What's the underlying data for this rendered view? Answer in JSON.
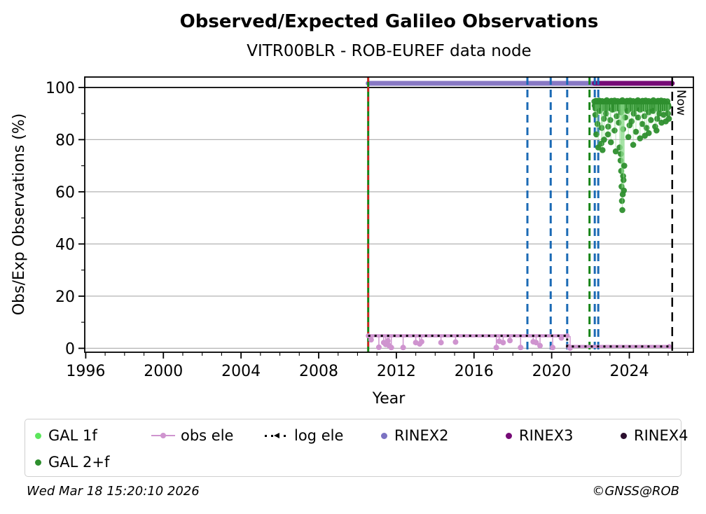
{
  "title": "Observed/Expected Galileo Observations",
  "subtitle": "VITR00BLR - ROB-EUREF data node",
  "now_label": "Now",
  "footer": {
    "timestamp": "Wed Mar 18 15:20:10 2026",
    "copyright": "©GNSS@ROB"
  },
  "legend": {
    "items": [
      {
        "label": "GAL 1f",
        "marker": "dot",
        "color": "#5ce65c",
        "row": 0
      },
      {
        "label": "obs ele",
        "marker": "line-dot",
        "color": "#cf94cf",
        "row": 0
      },
      {
        "label": "log ele",
        "marker": "dotted-arrow",
        "color": "#000000",
        "row": 0
      },
      {
        "label": "RINEX2",
        "marker": "dot",
        "color": "#7b72c2",
        "row": 0
      },
      {
        "label": "RINEX3",
        "marker": "dot",
        "color": "#760a76",
        "row": 0
      },
      {
        "label": "RINEX4",
        "marker": "dot",
        "color": "#2b0f2e",
        "row": 0
      },
      {
        "label": "GAL 2+f",
        "marker": "dot",
        "color": "#2e8f2e",
        "row": 1
      }
    ]
  },
  "chart_data": {
    "type": "scatter",
    "title": "Observed/Expected Galileo Observations",
    "subtitle": "VITR00BLR - ROB-EUREF data node",
    "xlabel": "Year",
    "ylabel": "Obs/Exp Observations (%)",
    "xlim": [
      1995.95,
      2027.3
    ],
    "ylim": [
      -1.5,
      104
    ],
    "x_major_ticks": [
      1996,
      2000,
      2004,
      2008,
      2012,
      2016,
      2020,
      2024
    ],
    "x_minor_step": 1,
    "y_major_ticks": [
      0,
      20,
      40,
      60,
      80,
      100
    ],
    "y_minor_step": 10,
    "grid_y": [
      0,
      20,
      40,
      60,
      80
    ],
    "grid_y_strong": [
      100
    ],
    "legend_position": "below",
    "grid": true,
    "bars": [
      {
        "name": "RINEX2",
        "y": 101.6,
        "x0": 2010.55,
        "x1": 2022.2,
        "color": "#8878c4"
      },
      {
        "name": "RINEX3",
        "y": 101.6,
        "x0": 2022.2,
        "x1": 2026.21,
        "color": "#760a76"
      }
    ],
    "event_lines": [
      {
        "x": 2010.55,
        "style": "solid",
        "color": "#168416",
        "overlay_color": "#d62020",
        "overlay_style": "dashed"
      },
      {
        "x": 2018.75,
        "style": "dashed",
        "color": "#1b6ab5"
      },
      {
        "x": 2019.95,
        "style": "dashed",
        "color": "#1b6ab5"
      },
      {
        "x": 2020.8,
        "style": "dashed",
        "color": "#1b6ab5"
      },
      {
        "x": 2021.95,
        "style": "dashed",
        "color": "#168416"
      },
      {
        "x": 2022.22,
        "style": "dashed",
        "color": "#1b6ab5"
      },
      {
        "x": 2022.4,
        "style": "dashed",
        "color": "#1b6ab5"
      }
    ],
    "now_line": {
      "x": 2026.21,
      "color": "#000000",
      "label": "Now"
    },
    "obs_ele": {
      "name": "obs ele",
      "color": "#cf94cf",
      "segments": [
        [
          [
            2010.55,
            4.8
          ],
          [
            2020.8,
            4.8
          ]
        ],
        [
          [
            2020.85,
            0.7
          ],
          [
            2026.05,
            0.7
          ]
        ]
      ],
      "drop_points": [
        [
          2010.7,
          3.3
        ],
        [
          2011.1,
          0.4
        ],
        [
          2011.35,
          2.2
        ],
        [
          2011.45,
          1.5
        ],
        [
          2011.56,
          2.8
        ],
        [
          2011.63,
          1.0
        ],
        [
          2011.74,
          0.3
        ],
        [
          2012.35,
          0.3
        ],
        [
          2013.0,
          2.2
        ],
        [
          2013.2,
          1.7
        ],
        [
          2013.3,
          2.5
        ],
        [
          2014.3,
          2.2
        ],
        [
          2015.05,
          2.4
        ],
        [
          2017.15,
          0.3
        ],
        [
          2017.3,
          2.7
        ],
        [
          2017.5,
          2.2
        ],
        [
          2017.85,
          3.0
        ],
        [
          2018.4,
          0.3
        ],
        [
          2019.05,
          2.5
        ],
        [
          2019.2,
          2.2
        ],
        [
          2019.4,
          1.0
        ],
        [
          2020.05,
          0.3
        ],
        [
          2020.5,
          4.0
        ],
        [
          2020.95,
          0.1
        ]
      ]
    },
    "log_ele": {
      "name": "log ele",
      "color": "#000000",
      "path": [
        [
          2010.55,
          4.8
        ],
        [
          2020.8,
          4.8
        ],
        [
          2020.8,
          0.7
        ],
        [
          2026.1,
          0.7
        ]
      ]
    },
    "series": [
      {
        "name": "GAL 1f",
        "color": "#5ce65c",
        "points": []
      },
      {
        "name": "GAL 2+f",
        "color": "#2e8f2e",
        "bands": [
          {
            "x_start": 2022.2,
            "x_step": 0.04,
            "values": [
              94.6,
              93.4,
              94.9,
              92.8,
              94.2,
              93.7,
              95,
              93.1,
              94.4,
              92.6,
              94.8,
              93.9,
              94,
              92.9,
              94.7,
              93.3,
              95.1,
              93.6,
              94.3,
              92.7,
              94.6,
              93.4,
              94.9,
              92.8,
              94.2,
              93.7,
              95,
              93.1,
              94.4,
              92.6,
              94.8,
              93.9,
              94,
              92.9,
              94.7,
              93.3,
              95.1,
              93.6,
              94.3,
              92.7,
              94.6,
              93.4,
              94.9,
              92.8,
              94.2,
              93.7,
              95,
              93.1,
              94.4,
              92.6,
              94.8,
              93.9,
              94,
              92.9,
              94.7,
              93.3,
              95.1,
              93.6,
              94.3,
              92.7,
              94.6,
              93.4,
              94.9,
              92.8,
              94.2,
              93.7,
              95,
              93.1,
              94.4,
              92.6,
              94.8,
              93.9,
              94,
              92.9,
              94.7,
              93.3,
              95.1,
              93.6,
              94.3,
              92.7,
              94.6,
              93.4,
              94.9,
              92.8,
              94.2,
              93.7,
              95,
              93.1,
              94.4,
              92.6,
              94.8,
              93.9,
              94,
              92.9,
              94.7,
              93.3
            ]
          },
          {
            "x_start": 2022.22,
            "x_step": 0.04,
            "values": [
              93,
              91.9,
              93.5,
              92.2,
              93.8,
              91.8,
              93.2,
              92.5,
              93.9,
              92,
              93.4,
              92.3,
              93.7,
              91.9,
              93.1,
              92.6,
              93.6,
              92.1,
              93.3,
              92.4,
              93,
              91.9,
              93.5,
              92.2,
              93.8,
              91.8,
              93.2,
              92.5,
              93.9,
              92,
              93.4,
              92.3,
              93.7,
              91.9,
              93.1,
              92.6,
              93.6,
              92.1,
              93.3,
              92.4,
              93,
              91.9,
              93.5,
              92.2,
              93.8,
              91.8,
              93.2,
              92.5,
              93.9,
              92,
              93.4,
              92.3,
              93.7,
              91.9,
              93.1,
              92.6,
              93.6,
              92.1,
              93.3,
              92.4,
              93,
              91.9,
              93.5,
              92.2,
              93.8,
              91.8,
              93.2,
              92.5,
              93.9,
              92,
              93.4,
              92.3,
              93.7,
              91.9,
              93.1,
              92.6,
              93.6,
              92.1,
              93.3,
              92.4,
              93,
              91.9,
              93.5,
              92.2,
              93.8,
              91.8,
              93.2,
              92.5,
              93.9,
              92,
              93.4,
              92.3,
              93.7,
              91.9,
              93.1,
              92.6
            ]
          }
        ],
        "points": [
          [
            2022.25,
            89.5
          ],
          [
            2022.36,
            86
          ],
          [
            2022.47,
            91
          ],
          [
            2022.58,
            84.5
          ],
          [
            2022.69,
            88
          ],
          [
            2022.8,
            90
          ],
          [
            2022.91,
            85
          ],
          [
            2023.02,
            87.5
          ],
          [
            2023.13,
            91.5
          ],
          [
            2023.24,
            83.5
          ],
          [
            2023.35,
            89
          ],
          [
            2023.46,
            86.5
          ],
          [
            2023.57,
            90.5
          ],
          [
            2023.68,
            84
          ],
          [
            2023.79,
            88.5
          ],
          [
            2023.9,
            91
          ],
          [
            2024.01,
            85.5
          ],
          [
            2024.12,
            87
          ],
          [
            2024.23,
            90
          ],
          [
            2024.34,
            83
          ],
          [
            2024.45,
            88.5
          ],
          [
            2024.56,
            91.5
          ],
          [
            2024.67,
            86
          ],
          [
            2024.78,
            89
          ],
          [
            2024.89,
            84.5
          ],
          [
            2025.0,
            90.5
          ],
          [
            2025.11,
            87.5
          ],
          [
            2025.22,
            91
          ],
          [
            2025.33,
            85
          ],
          [
            2025.44,
            88
          ],
          [
            2025.55,
            90
          ],
          [
            2025.66,
            86.5
          ],
          [
            2025.77,
            89.5
          ],
          [
            2025.88,
            87
          ],
          [
            2025.99,
            90
          ],
          [
            2026.04,
            88
          ],
          [
            2022.3,
            82
          ],
          [
            2022.4,
            77
          ],
          [
            2022.56,
            78.5
          ],
          [
            2022.62,
            76
          ],
          [
            2022.7,
            80
          ],
          [
            2022.9,
            82
          ],
          [
            2023.05,
            79
          ],
          [
            2023.3,
            75.5
          ],
          [
            2023.5,
            77
          ],
          [
            2023.95,
            81
          ],
          [
            2024.2,
            78
          ],
          [
            2024.55,
            80.5
          ],
          [
            2024.8,
            81.5
          ],
          [
            2025.0,
            82.5
          ],
          [
            2025.4,
            83.5
          ],
          [
            2023.55,
            72
          ],
          [
            2023.56,
            74.5
          ],
          [
            2023.58,
            68
          ],
          [
            2023.6,
            62
          ],
          [
            2023.62,
            56.5
          ],
          [
            2023.64,
            53
          ],
          [
            2023.66,
            59
          ],
          [
            2023.68,
            66
          ],
          [
            2023.7,
            64.5
          ],
          [
            2023.72,
            60.5
          ],
          [
            2023.74,
            70
          ]
        ]
      }
    ]
  }
}
